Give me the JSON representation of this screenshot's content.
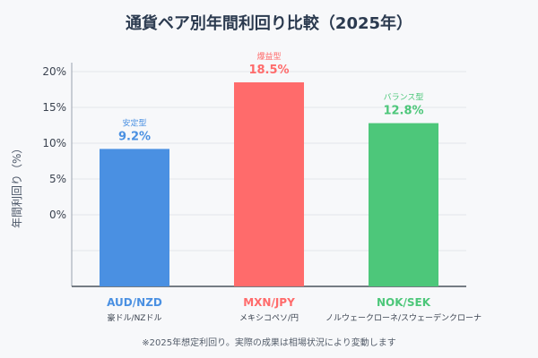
{
  "chart_data": {
    "type": "bar",
    "title": "通貨ペア別年間利回り比較（2025年）",
    "ylabel": "年間利回り（%）",
    "xlabel": "",
    "y_ticks": [
      "20%",
      "15%",
      "10%",
      "5%",
      "0%"
    ],
    "categories": [
      "AUD/NZD",
      "MXN/JPY",
      "NOK/SEK"
    ],
    "category_subtitles": [
      "豪ドル/NZドル",
      "メキシコペソ/円",
      "ノルウェークローネ/スウェーデンクローナ"
    ],
    "values": [
      9.2,
      18.5,
      12.8
    ],
    "value_labels": [
      "9.2%",
      "18.5%",
      "12.8%"
    ],
    "risk_labels": [
      "安定型",
      "爆益型",
      "バランス型"
    ],
    "colors": [
      "#4a90e2",
      "#ff6b6b",
      "#4dc77a"
    ],
    "grid": true,
    "footnote": "※2025年想定利回り。実際の成果は相場状況により変動します"
  }
}
